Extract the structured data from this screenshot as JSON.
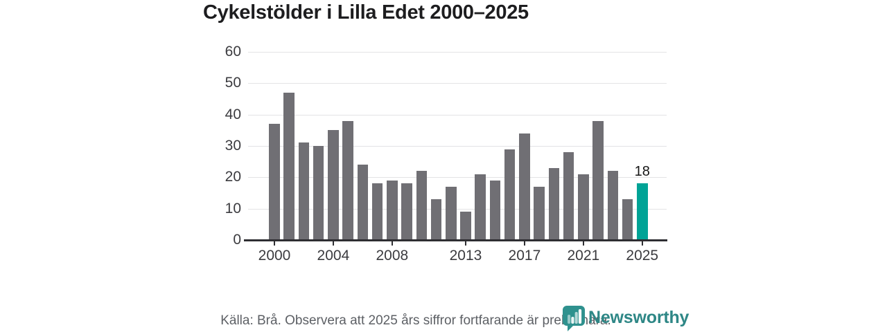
{
  "title": "Cykelstölder i Lilla Edet 2000–2025",
  "footer": {
    "source_note": "Källa: Brå. Observera att 2025 års siffror fortfarande är preliminära."
  },
  "branding": {
    "name": "Newsworthy",
    "icon": "newsworthy-chart-bubble-icon",
    "text_color": "#2e8786",
    "icon_color": "#2f918e"
  },
  "chart_data": {
    "type": "bar",
    "title": "Cykelstölder i Lilla Edet 2000–2025",
    "x": [
      2000,
      2001,
      2002,
      2003,
      2004,
      2005,
      2006,
      2007,
      2008,
      2009,
      2010,
      2011,
      2012,
      2013,
      2014,
      2015,
      2016,
      2017,
      2018,
      2019,
      2020,
      2021,
      2022,
      2023,
      2024,
      2025
    ],
    "values": [
      37,
      47,
      31,
      30,
      35,
      38,
      24,
      18,
      19,
      18,
      22,
      13,
      17,
      9,
      21,
      19,
      29,
      34,
      17,
      23,
      28,
      21,
      38,
      22,
      13,
      18
    ],
    "xlabel": "",
    "ylabel": "",
    "ylim": [
      0,
      60
    ],
    "yticks": [
      0,
      10,
      20,
      30,
      40,
      50,
      60
    ],
    "xtick_years": [
      2000,
      2004,
      2008,
      2013,
      2017,
      2021,
      2025
    ],
    "grid": true,
    "legend_position": "none",
    "bar_color": "#706f74",
    "highlight_year": 2025,
    "highlight_color": "#00a396",
    "data_label": {
      "year": 2025,
      "text": "18"
    }
  }
}
